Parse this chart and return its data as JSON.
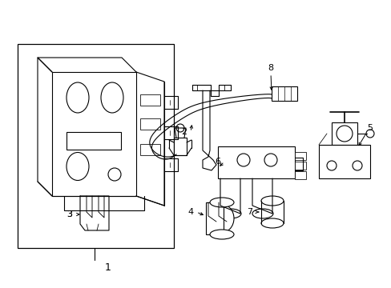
{
  "background_color": "#ffffff",
  "line_color": "#000000",
  "lw": 0.8,
  "fig_width": 4.89,
  "fig_height": 3.6,
  "dpi": 100,
  "xlim": [
    0,
    489
  ],
  "ylim": [
    0,
    360
  ]
}
